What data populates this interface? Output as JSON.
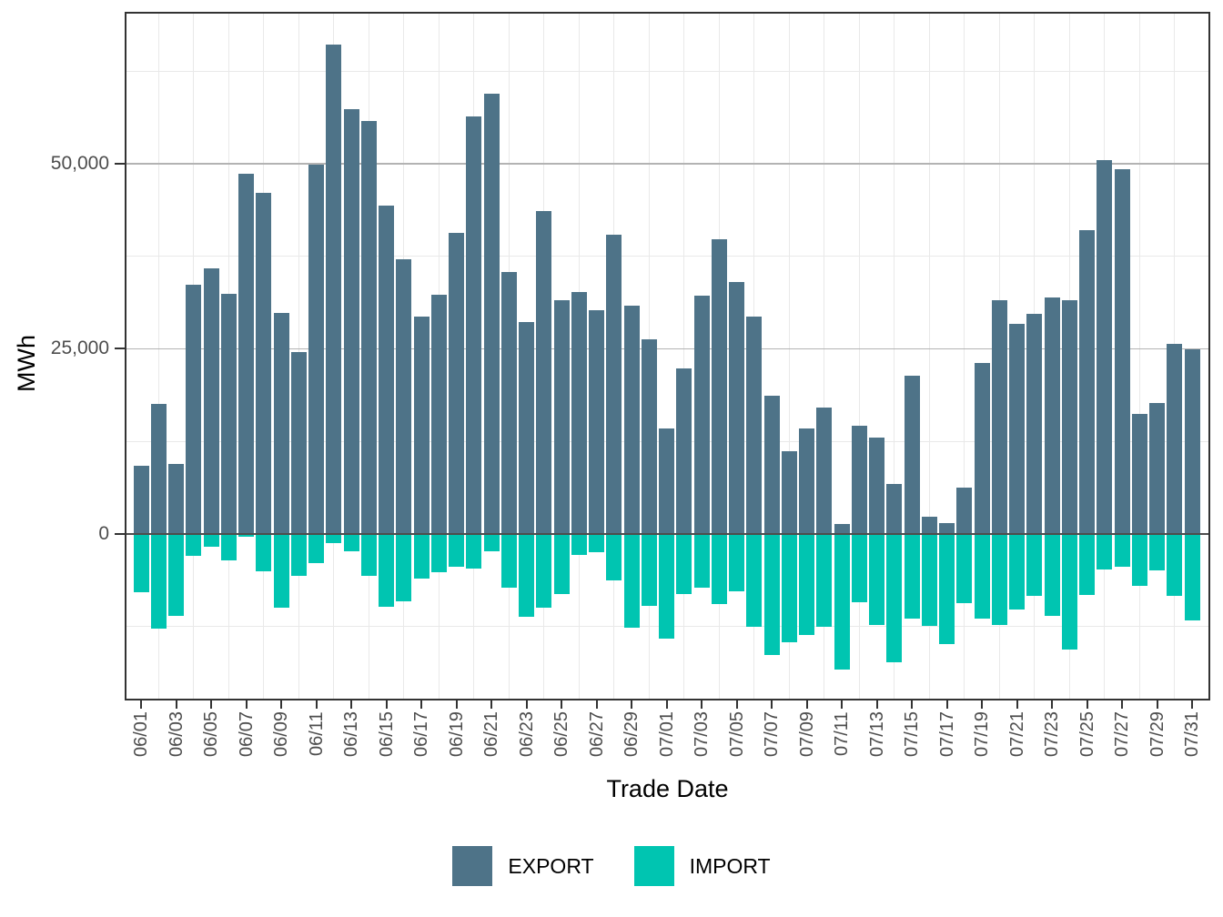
{
  "chart_data": {
    "type": "bar",
    "title": "",
    "xlabel": "Trade Date",
    "ylabel": "MWh",
    "legend_position": "bottom",
    "grid": true,
    "ylim": [
      -22500,
      70500
    ],
    "y_ticks": [
      {
        "value": 50000,
        "label": "50,000"
      },
      {
        "value": 25000,
        "label": "25,000"
      },
      {
        "value": 0,
        "label": "0"
      }
    ],
    "y_minor_gridlines": [
      62500,
      37500,
      12500,
      -12500
    ],
    "x_tick_every": 2,
    "categories": [
      "06/01",
      "06/02",
      "06/03",
      "06/04",
      "06/05",
      "06/06",
      "06/07",
      "06/08",
      "06/09",
      "06/10",
      "06/11",
      "06/12",
      "06/13",
      "06/14",
      "06/15",
      "06/16",
      "06/17",
      "06/18",
      "06/19",
      "06/20",
      "06/21",
      "06/22",
      "06/23",
      "06/24",
      "06/25",
      "06/26",
      "06/27",
      "06/28",
      "06/29",
      "06/30",
      "07/01",
      "07/02",
      "07/03",
      "07/04",
      "07/05",
      "07/06",
      "07/07",
      "07/08",
      "07/09",
      "07/10",
      "07/11",
      "07/12",
      "07/13",
      "07/14",
      "07/15",
      "07/16",
      "07/17",
      "07/18",
      "07/19",
      "07/20",
      "07/21",
      "07/22",
      "07/23",
      "07/24",
      "07/25",
      "07/26",
      "07/27",
      "07/28",
      "07/29",
      "07/30",
      "07/31"
    ],
    "series": [
      {
        "name": "EXPORT",
        "color": "#4e7388",
        "values": [
          9200,
          17600,
          9400,
          33700,
          35900,
          32400,
          48600,
          46000,
          29800,
          24500,
          49900,
          66100,
          57300,
          55800,
          44300,
          37100,
          29300,
          32300,
          40700,
          56400,
          59500,
          35400,
          28600,
          43600,
          31500,
          32700,
          30200,
          40400,
          30800,
          26300,
          14200,
          22300,
          32200,
          39800,
          34000,
          29400,
          18600,
          11200,
          14200,
          17000,
          1300,
          14600,
          13000,
          6700,
          21400,
          2300,
          1500,
          6300,
          23100,
          31600,
          28300,
          29700,
          31900,
          31500,
          41000,
          50500,
          49300,
          16200,
          17700,
          25600,
          24900
        ]
      },
      {
        "name": "IMPORT",
        "color": "#00c5b1",
        "values": [
          -7900,
          -12800,
          -11100,
          -3000,
          -1800,
          -3600,
          -400,
          -5100,
          -10000,
          -5700,
          -4000,
          -1300,
          -2400,
          -5700,
          -9900,
          -9100,
          -6100,
          -5200,
          -4500,
          -4700,
          -2300,
          -7300,
          -11200,
          -10000,
          -8100,
          -2800,
          -2500,
          -6300,
          -12700,
          -9700,
          -14100,
          -8100,
          -7300,
          -9500,
          -7800,
          -12500,
          -16300,
          -14700,
          -13600,
          -12500,
          -18300,
          -9200,
          -12300,
          -17400,
          -11400,
          -12400,
          -14900,
          -9400,
          -11500,
          -12300,
          -10200,
          -8400,
          -11100,
          -15600,
          -8200,
          -4800,
          -4400,
          -7000,
          -4900,
          -8400,
          -11700
        ]
      }
    ]
  },
  "legend": {
    "items": [
      {
        "label": "EXPORT"
      },
      {
        "label": "IMPORT"
      }
    ]
  }
}
